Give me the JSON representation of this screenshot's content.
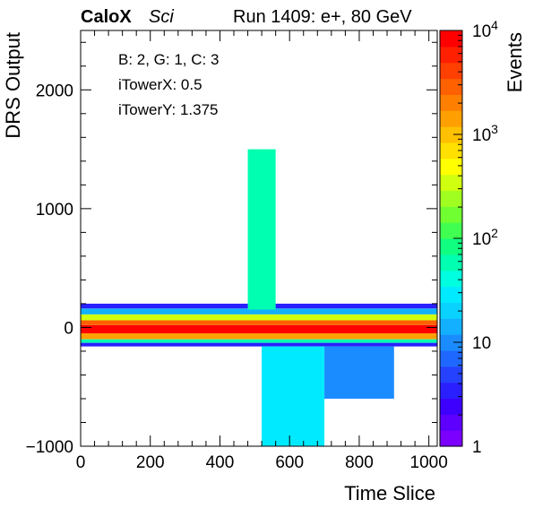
{
  "header": {
    "brand": "CaloX",
    "brand_sub": "Sci",
    "run_label": "Run 1409: e+, 80 GeV"
  },
  "info_lines": [
    "B: 2, G: 1, C: 3",
    "iTowerX: 0.5",
    "iTowerY: 1.375"
  ],
  "chart_data": {
    "type": "heatmap",
    "title": "",
    "xlabel": "Time Slice",
    "ylabel": "DRS Output",
    "zlabel": "Events",
    "xlim": [
      0,
      1024
    ],
    "ylim": [
      -1000,
      2500
    ],
    "zlim": [
      1,
      10000
    ],
    "z_scale": "log",
    "x_ticks": [
      0,
      200,
      400,
      600,
      800,
      1000
    ],
    "y_ticks": [
      -1000,
      0,
      1000,
      2000
    ],
    "x_tick_labels": [
      "0",
      "200",
      "400",
      "600",
      "800",
      "1000"
    ],
    "y_tick_labels": [
      "−1000",
      "0",
      "1000",
      "2000"
    ],
    "z_ticks": [
      {
        "value": 1,
        "base": "1",
        "exp": ""
      },
      {
        "value": 10,
        "base": "10",
        "exp": ""
      },
      {
        "value": 100,
        "base": "10",
        "exp": "2"
      },
      {
        "value": 1000,
        "base": "10",
        "exp": "3"
      },
      {
        "value": 10000,
        "base": "10",
        "exp": "4"
      }
    ],
    "palette": [
      "#7b00ff",
      "#5e00ff",
      "#3d00ff",
      "#2a1fff",
      "#2542ff",
      "#1f68ff",
      "#1a8cff",
      "#12b0ff",
      "#0ad2ff",
      "#00eaff",
      "#00ffe0",
      "#00ffb0",
      "#10ff80",
      "#40ff50",
      "#70ff30",
      "#a0ff20",
      "#d0ff10",
      "#ffff00",
      "#ffe000",
      "#ffc000",
      "#ffa000",
      "#ff8000",
      "#ff6000",
      "#ff4000",
      "#ff2000",
      "#ff0000"
    ],
    "bands": [
      {
        "x0": 0,
        "x1": 1024,
        "y0": -50,
        "y1": 20,
        "z": 8000
      },
      {
        "x0": 0,
        "x1": 1024,
        "y0": 20,
        "y1": 60,
        "z": 2500
      },
      {
        "x0": 0,
        "x1": 1024,
        "y0": -100,
        "y1": -50,
        "z": 1500
      },
      {
        "x0": 0,
        "x1": 1024,
        "y0": 60,
        "y1": 110,
        "z": 400
      },
      {
        "x0": 0,
        "x1": 1024,
        "y0": -130,
        "y1": -100,
        "z": 60
      },
      {
        "x0": 0,
        "x1": 1024,
        "y0": 110,
        "y1": 160,
        "z": 15
      },
      {
        "x0": 0,
        "x1": 1024,
        "y0": 160,
        "y1": 200,
        "z": 3
      },
      {
        "x0": 0,
        "x1": 1024,
        "y0": -160,
        "y1": -130,
        "z": 4
      },
      {
        "x0": 480,
        "x1": 560,
        "y0": 150,
        "y1": 1500,
        "z": 60
      },
      {
        "x0": 520,
        "x1": 700,
        "y0": -1000,
        "y1": -160,
        "z": 30
      },
      {
        "x0": 700,
        "x1": 900,
        "y0": -600,
        "y1": -160,
        "z": 10
      }
    ]
  }
}
